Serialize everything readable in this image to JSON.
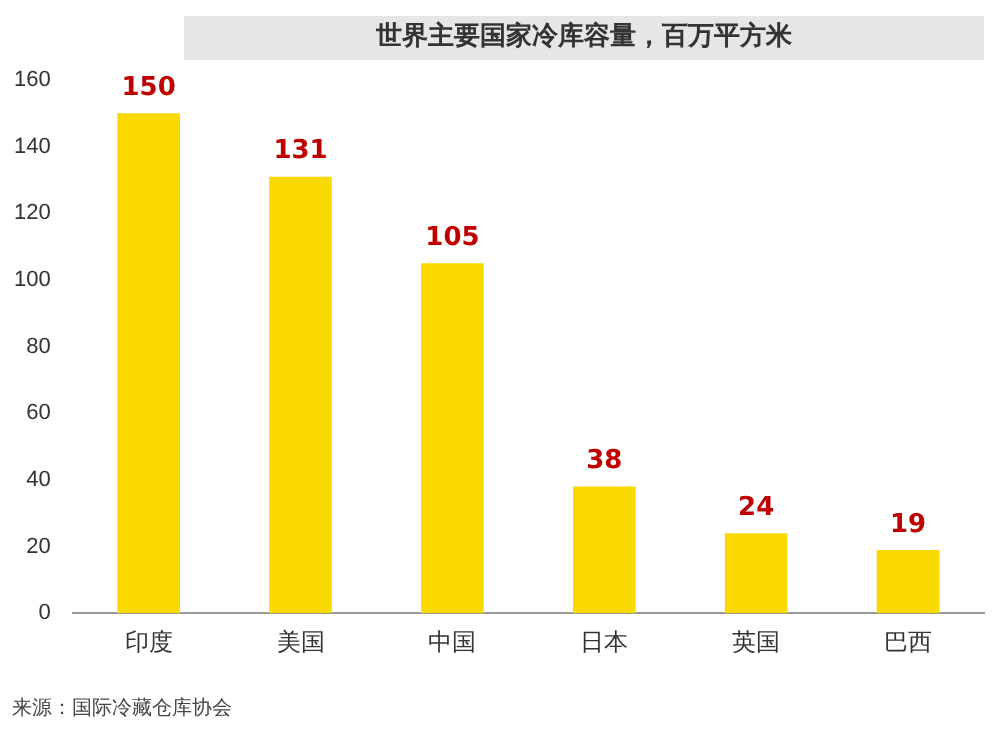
{
  "chart_data": {
    "type": "bar",
    "title": "世界主要国家冷库容量，百万平方米",
    "categories": [
      "印度",
      "美国",
      "中国",
      "日本",
      "英国",
      "巴西"
    ],
    "values": [
      150,
      131,
      105,
      38,
      24,
      19
    ],
    "color": "#f9d900",
    "ylim": [
      0,
      160
    ],
    "yticks": [
      0,
      20,
      40,
      60,
      80,
      100,
      120,
      140,
      160
    ],
    "grid": false,
    "data_labels": true,
    "legend": false,
    "annotations": [
      "来源：国际冷藏仓库协会"
    ]
  }
}
